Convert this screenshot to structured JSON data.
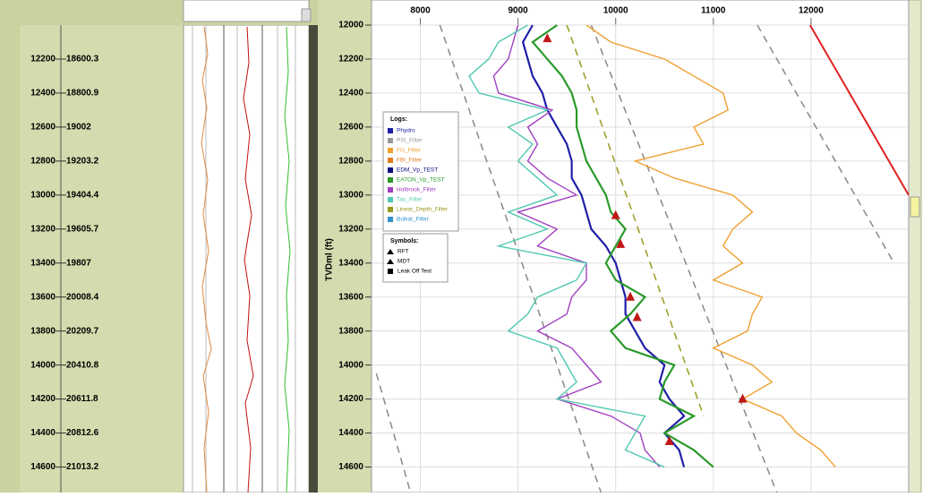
{
  "depth_track": [
    {
      "tvd": "12200",
      "md": "18600.3"
    },
    {
      "tvd": "12400",
      "md": "18800.9"
    },
    {
      "tvd": "12600",
      "md": "19002"
    },
    {
      "tvd": "12800",
      "md": "19203.2"
    },
    {
      "tvd": "13000",
      "md": "19404.4"
    },
    {
      "tvd": "13200",
      "md": "19605.7"
    },
    {
      "tvd": "13400",
      "md": "19807"
    },
    {
      "tvd": "13600",
      "md": "20008.4"
    },
    {
      "tvd": "13800",
      "md": "20209.7"
    },
    {
      "tvd": "14000",
      "md": "20410.8"
    },
    {
      "tvd": "14200",
      "md": "20611.8"
    },
    {
      "tvd": "14400",
      "md": "20812.6"
    },
    {
      "tvd": "14600",
      "md": "21013.2"
    }
  ],
  "chart_data": {
    "type": "line",
    "ylabel": "TVDml (ft)",
    "xlim": [
      7500,
      13000
    ],
    "xticks": [
      8000,
      9000,
      10000,
      11000,
      12000
    ],
    "ylim": [
      12000,
      14750
    ],
    "yticks": [
      12000,
      12200,
      12400,
      12600,
      12800,
      13000,
      13200,
      13400,
      13600,
      13800,
      14000,
      14200,
      14400,
      14600
    ],
    "grid": true,
    "depths": [
      12000,
      12100,
      12200,
      12300,
      12400,
      12500,
      12600,
      12700,
      12800,
      12900,
      13000,
      13100,
      13200,
      13300,
      13400,
      13500,
      13600,
      13700,
      13800,
      13900,
      14000,
      14100,
      14200,
      14300,
      14400,
      14500,
      14600
    ],
    "legend_title": "Logs:",
    "series": [
      {
        "name": "Phydro",
        "color": "#1f1fa8",
        "values": [
          9150,
          9050,
          9100,
          9150,
          9250,
          9300,
          9400,
          9500,
          9550,
          9550,
          9650,
          9700,
          9750,
          9900,
          10000,
          10050,
          10100,
          10100,
          10200,
          10300,
          10500,
          10450,
          10550,
          10700,
          10500,
          10650,
          10700
        ]
      },
      {
        "name": "PSI_Filter",
        "color": "#999999"
      },
      {
        "name": "FG_Filter",
        "color": "#f0a030",
        "values": [
          9700,
          9950,
          10500,
          10800,
          11100,
          11150,
          10800,
          10900,
          10200,
          10600,
          11200,
          11400,
          11200,
          11100,
          11300,
          11000,
          11500,
          11400,
          11350,
          11000,
          11400,
          11600,
          11300,
          11700,
          11850,
          12100,
          12250
        ]
      },
      {
        "name": "FBI_Filter",
        "color": "#e07a20"
      },
      {
        "name": "EDM_Vp_TEST",
        "color": "#0a0a80"
      },
      {
        "name": "EATON_Vp_TEST",
        "color": "#2a9a2a",
        "values": [
          9400,
          9150,
          9300,
          9450,
          9550,
          9600,
          9600,
          9650,
          9700,
          9800,
          9900,
          9950,
          10100,
          10000,
          9900,
          10000,
          10300,
          10150,
          9950,
          10100,
          10600,
          10500,
          10450,
          10800,
          10500,
          10800,
          11000
        ]
      },
      {
        "name": "Holbrook_Filter",
        "color": "#a040c0",
        "values": [
          9000,
          8950,
          8900,
          8750,
          8800,
          9350,
          9100,
          9200,
          9100,
          9300,
          9600,
          9000,
          9400,
          9200,
          9700,
          9700,
          9550,
          9500,
          9200,
          9550,
          9700,
          9850,
          9400,
          9950,
          10250,
          10300,
          10450
        ]
      },
      {
        "name": "Tau_Filter",
        "color": "#50c8b0",
        "values": [
          9100,
          8800,
          8700,
          8500,
          8600,
          9300,
          8900,
          9150,
          9000,
          9200,
          9400,
          8900,
          9300,
          8800,
          9700,
          9600,
          9200,
          9100,
          8900,
          9400,
          9500,
          9600,
          9400,
          10300,
          10200,
          10100,
          10500
        ]
      },
      {
        "name": "Linear_Depth_Filter",
        "color": "#9a9a20"
      },
      {
        "name": "Bulkal_Filter",
        "color": "#3090d0"
      }
    ],
    "trend_lines": [
      {
        "color": "#888888",
        "x": [
          8200,
          9850
        ],
        "y": [
          12000,
          14750
        ]
      },
      {
        "color": "#888888",
        "x": [
          7550,
          7900
        ],
        "y": [
          14050,
          14750
        ]
      },
      {
        "color": "#888888",
        "x": [
          9750,
          11650
        ],
        "y": [
          12000,
          14750
        ]
      },
      {
        "color": "#888888",
        "x": [
          11450,
          12850
        ],
        "y": [
          12000,
          13400
        ]
      },
      {
        "color": "#9a9a20",
        "x": [
          9500,
          10900
        ],
        "y": [
          12000,
          14300
        ]
      },
      {
        "color": "#e02020",
        "x": [
          11990,
          13000
        ],
        "y": [
          12000,
          13000
        ]
      }
    ],
    "symbols_title": "Symbols:",
    "symbols": [
      "RFT",
      "MDT",
      "Leak Off Test"
    ],
    "points": {
      "color": "#c01818",
      "x": [
        9300,
        10000,
        10050,
        10150,
        10220,
        11300,
        10550
      ],
      "y": [
        12080,
        13120,
        13290,
        13600,
        13720,
        14200,
        14450
      ]
    }
  }
}
